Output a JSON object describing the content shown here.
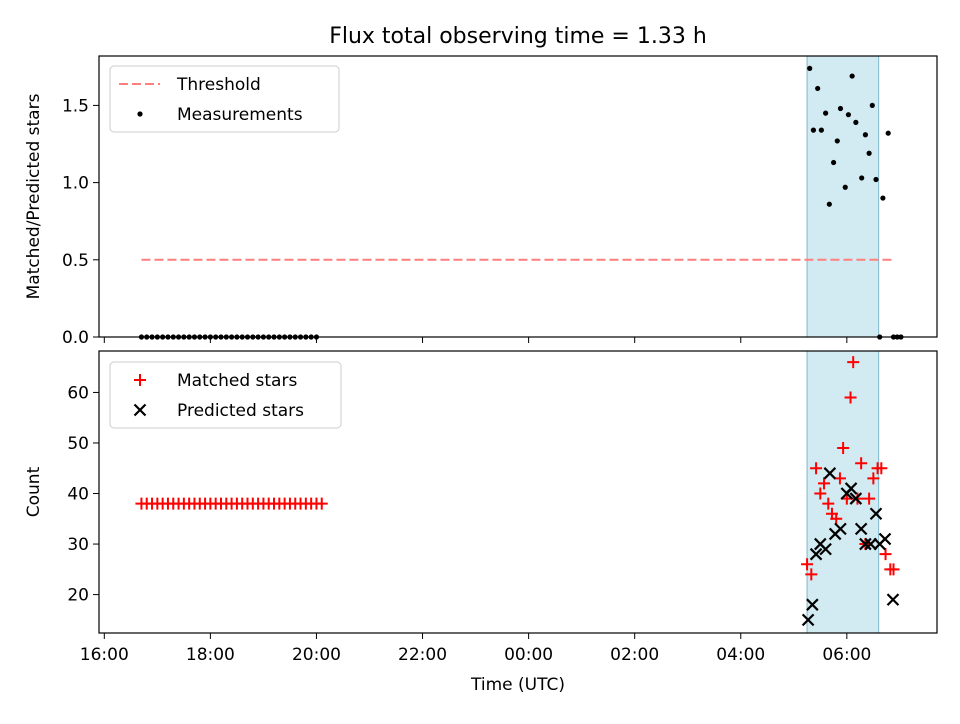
{
  "figure": {
    "title": "Flux total observing time = 1.33 h"
  },
  "chart_data": [
    {
      "type": "line+scatter",
      "ylabel": "Matched/Predicted stars",
      "xlabel": "",
      "xlim_hours": [
        15.9,
        31.7
      ],
      "ylim": [
        0,
        1.82
      ],
      "yticks": [
        0.0,
        0.5,
        1.0,
        1.5
      ],
      "ytick_labels": [
        "0.0",
        "0.5",
        "1.0",
        "1.5"
      ],
      "highlight_span_hours": [
        29.25,
        30.6
      ],
      "highlight_color": "#add8e6",
      "legend": {
        "loc": "upper left",
        "entries": [
          "Threshold",
          "Measurements"
        ]
      },
      "series": [
        {
          "name": "Threshold",
          "kind": "line",
          "style": "dashed",
          "color": "#ff7f7f",
          "x": [
            16.7,
            30.85
          ],
          "y": [
            0.5,
            0.5
          ]
        },
        {
          "name": "Measurements",
          "kind": "scatter",
          "color": "#000000",
          "x": [
            16.7,
            16.8,
            16.9,
            17.0,
            17.1,
            17.2,
            17.3,
            17.4,
            17.5,
            17.6,
            17.7,
            17.8,
            17.9,
            18.0,
            18.1,
            18.2,
            18.3,
            18.4,
            18.5,
            18.6,
            18.7,
            18.8,
            18.9,
            19.0,
            19.1,
            19.2,
            19.3,
            19.4,
            19.5,
            19.6,
            19.7,
            19.8,
            19.9,
            20.0,
            29.3,
            29.37,
            29.45,
            29.52,
            29.6,
            29.67,
            29.75,
            29.82,
            29.88,
            29.97,
            30.03,
            30.1,
            30.17,
            30.28,
            30.35,
            30.42,
            30.48,
            30.55,
            30.62,
            30.68,
            30.78,
            30.88,
            30.95,
            31.02
          ],
          "y": [
            0,
            0,
            0,
            0,
            0,
            0,
            0,
            0,
            0,
            0,
            0,
            0,
            0,
            0,
            0,
            0,
            0,
            0,
            0,
            0,
            0,
            0,
            0,
            0,
            0,
            0,
            0,
            0,
            0,
            0,
            0,
            0,
            0,
            0,
            1.74,
            1.34,
            1.61,
            1.34,
            1.45,
            0.86,
            1.13,
            1.27,
            1.48,
            0.97,
            1.44,
            1.69,
            1.39,
            1.03,
            1.31,
            1.19,
            1.5,
            1.02,
            0.0,
            0.9,
            1.32,
            0.0,
            0.0,
            0.0
          ]
        }
      ]
    },
    {
      "type": "scatter",
      "ylabel": "Count",
      "xlabel": "Time (UTC)",
      "xlim_hours": [
        15.9,
        31.7
      ],
      "ylim": [
        12.4,
        68.2
      ],
      "yticks": [
        20,
        30,
        40,
        50,
        60
      ],
      "xticks_hours": [
        16,
        18,
        20,
        22,
        24,
        26,
        28,
        30
      ],
      "xtick_labels": [
        "16:00",
        "18:00",
        "20:00",
        "22:00",
        "00:00",
        "02:00",
        "04:00",
        "06:00"
      ],
      "highlight_span_hours": [
        29.25,
        30.6
      ],
      "highlight_color": "#add8e6",
      "legend": {
        "loc": "upper left",
        "entries": [
          "Matched stars",
          "Predicted stars"
        ]
      },
      "series": [
        {
          "name": "Matched stars",
          "marker": "+",
          "color": "#ff0000",
          "x": [
            16.7,
            16.8,
            16.9,
            17.0,
            17.1,
            17.2,
            17.3,
            17.4,
            17.5,
            17.6,
            17.7,
            17.8,
            17.9,
            18.0,
            18.1,
            18.2,
            18.3,
            18.4,
            18.5,
            18.6,
            18.7,
            18.8,
            18.9,
            19.0,
            19.1,
            19.2,
            19.3,
            19.4,
            19.5,
            19.6,
            19.7,
            19.8,
            19.9,
            20.0,
            20.1,
            29.25,
            29.33,
            29.42,
            29.5,
            29.57,
            29.65,
            29.72,
            29.8,
            29.87,
            29.93,
            30.0,
            30.07,
            30.12,
            30.2,
            30.27,
            30.35,
            30.42,
            30.5,
            30.58,
            30.65,
            30.73,
            30.82,
            30.88
          ],
          "y": [
            38,
            38,
            38,
            38,
            38,
            38,
            38,
            38,
            38,
            38,
            38,
            38,
            38,
            38,
            38,
            38,
            38,
            38,
            38,
            38,
            38,
            38,
            38,
            38,
            38,
            38,
            38,
            38,
            38,
            38,
            38,
            38,
            38,
            38,
            38,
            26,
            24,
            45,
            40,
            42,
            38,
            36,
            35,
            43,
            49,
            39,
            59,
            66,
            39,
            46,
            30,
            39,
            43,
            45,
            45,
            28,
            25,
            25
          ]
        },
        {
          "name": "Predicted stars",
          "marker": "x",
          "color": "#000000",
          "x": [
            29.27,
            29.35,
            29.42,
            29.5,
            29.6,
            29.68,
            29.78,
            29.88,
            30.0,
            30.08,
            30.17,
            30.27,
            30.35,
            30.45,
            30.55,
            30.62,
            30.72,
            30.87
          ],
          "y": [
            15,
            18,
            28,
            30,
            29,
            44,
            32,
            33,
            40,
            41,
            39,
            33,
            30,
            30,
            36,
            30,
            31,
            19
          ]
        }
      ]
    }
  ]
}
